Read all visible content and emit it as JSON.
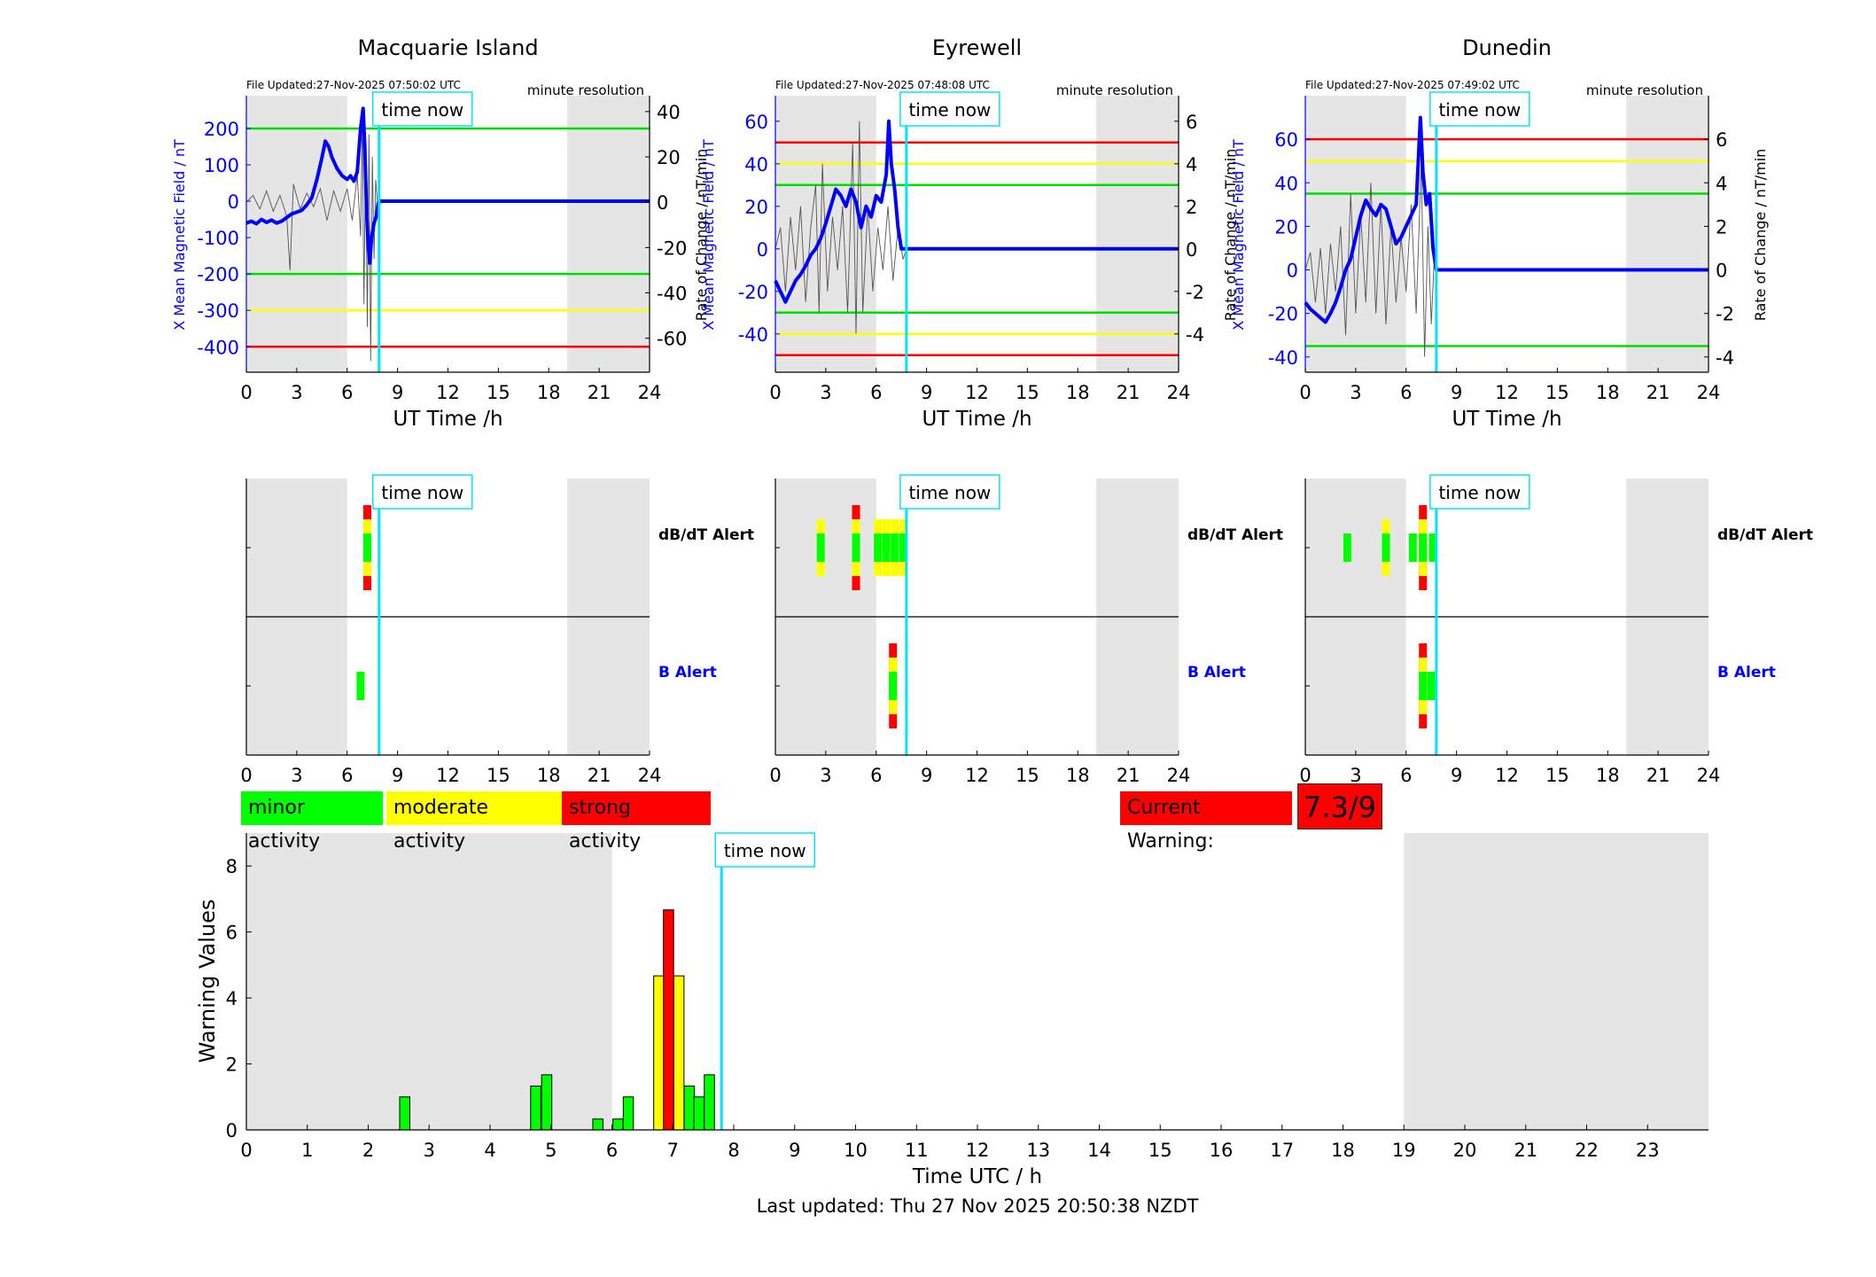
{
  "panels": [
    {
      "station": "Macquarie Island",
      "file_updated": "File Updated:27-Nov-2025 07:50:02 UTC",
      "resolution": "minute resolution",
      "left_axis_label": "X Mean Magnetic Field / nT",
      "right_axis_label": "Rate of Change / nT/min",
      "x_axis_label": "UT Time /h",
      "time_now_label": "time now",
      "time_now_h": 7.9,
      "night_shading": [
        [
          0,
          6.0
        ],
        [
          19.1,
          24
        ]
      ],
      "left_ticks": [
        200,
        100,
        0,
        -100,
        -200,
        -300,
        -400
      ],
      "left_ylim": [
        -470,
        290
      ],
      "right_ticks": [
        40,
        20,
        0,
        -20,
        -40,
        -60
      ],
      "right_ylim": [
        -75,
        47
      ],
      "x_ticks": [
        0,
        3,
        6,
        9,
        12,
        15,
        18,
        21,
        24
      ],
      "thresholds": [
        {
          "value": 200,
          "color": "#00dd00"
        },
        {
          "value": -200,
          "color": "#00dd00"
        },
        {
          "value": -300,
          "color": "#ffff00"
        },
        {
          "value": -400,
          "color": "#ff0000"
        }
      ],
      "x_mean_series": [
        [
          0,
          -60
        ],
        [
          0.3,
          -55
        ],
        [
          0.6,
          -62
        ],
        [
          0.9,
          -50
        ],
        [
          1.2,
          -58
        ],
        [
          1.5,
          -52
        ],
        [
          1.8,
          -60
        ],
        [
          2.1,
          -55
        ],
        [
          2.4,
          -45
        ],
        [
          2.7,
          -35
        ],
        [
          3.0,
          -30
        ],
        [
          3.3,
          -25
        ],
        [
          3.6,
          -10
        ],
        [
          3.9,
          10
        ],
        [
          4.2,
          60
        ],
        [
          4.5,
          120
        ],
        [
          4.7,
          165
        ],
        [
          4.9,
          150
        ],
        [
          5.1,
          120
        ],
        [
          5.4,
          90
        ],
        [
          5.7,
          70
        ],
        [
          6.0,
          60
        ],
        [
          6.2,
          70
        ],
        [
          6.4,
          55
        ],
        [
          6.6,
          80
        ],
        [
          6.8,
          200
        ],
        [
          6.95,
          255
        ],
        [
          7.05,
          150
        ],
        [
          7.15,
          -20
        ],
        [
          7.25,
          -120
        ],
        [
          7.35,
          -170
        ],
        [
          7.45,
          -100
        ],
        [
          7.6,
          -60
        ],
        [
          7.75,
          -40
        ],
        [
          7.85,
          -5
        ],
        [
          8.0,
          0
        ],
        [
          24,
          0
        ]
      ],
      "rate_series": [
        [
          0,
          0
        ],
        [
          0.4,
          3
        ],
        [
          0.8,
          -3
        ],
        [
          1.2,
          5
        ],
        [
          1.6,
          -4
        ],
        [
          2.0,
          3
        ],
        [
          2.4,
          -6
        ],
        [
          2.6,
          -30
        ],
        [
          2.8,
          8
        ],
        [
          3.2,
          -3
        ],
        [
          3.6,
          4
        ],
        [
          4.0,
          -2
        ],
        [
          4.4,
          6
        ],
        [
          4.8,
          -8
        ],
        [
          5.2,
          5
        ],
        [
          5.6,
          -4
        ],
        [
          6.0,
          6
        ],
        [
          6.3,
          -8
        ],
        [
          6.6,
          12
        ],
        [
          6.8,
          -15
        ],
        [
          6.9,
          35
        ],
        [
          7.0,
          -45
        ],
        [
          7.1,
          25
        ],
        [
          7.2,
          -55
        ],
        [
          7.3,
          30
        ],
        [
          7.4,
          -70
        ],
        [
          7.5,
          20
        ],
        [
          7.6,
          -25
        ],
        [
          7.7,
          10
        ],
        [
          7.8,
          0
        ]
      ],
      "alert_dbdt_label": "dB/dT Alert",
      "alert_b_label": "B Alert",
      "dbdt_alerts": [
        {
          "t": 7.2,
          "level": 3
        }
      ],
      "b_alerts": [
        {
          "t": 6.8,
          "level": 1
        }
      ]
    },
    {
      "station": "Eyrewell",
      "file_updated": "File Updated:27-Nov-2025 07:48:08 UTC",
      "resolution": "minute resolution",
      "left_axis_label": "X Mean Magnetic Field / nT",
      "right_axis_label": "Rate of Change / nT/min",
      "x_axis_label": "UT Time /h",
      "time_now_label": "time now",
      "time_now_h": 7.8,
      "night_shading": [
        [
          0,
          6.0
        ],
        [
          19.1,
          24
        ]
      ],
      "left_ticks": [
        60,
        40,
        20,
        0,
        -20,
        -40
      ],
      "left_ylim": [
        -58,
        72
      ],
      "right_ticks": [
        6,
        4,
        2,
        0,
        -2,
        -4
      ],
      "right_ylim": [
        -5.8,
        7.2
      ],
      "x_ticks": [
        0,
        3,
        6,
        9,
        12,
        15,
        18,
        21,
        24
      ],
      "thresholds": [
        {
          "value": 50,
          "color": "#ff0000"
        },
        {
          "value": 40,
          "color": "#ffff00"
        },
        {
          "value": 30,
          "color": "#00dd00"
        },
        {
          "value": -30,
          "color": "#00dd00"
        },
        {
          "value": -40,
          "color": "#ffff00"
        },
        {
          "value": -50,
          "color": "#ff0000"
        }
      ],
      "x_mean_series": [
        [
          0,
          -15
        ],
        [
          0.3,
          -20
        ],
        [
          0.6,
          -25
        ],
        [
          0.9,
          -20
        ],
        [
          1.2,
          -15
        ],
        [
          1.5,
          -12
        ],
        [
          1.8,
          -8
        ],
        [
          2.1,
          -3
        ],
        [
          2.4,
          0
        ],
        [
          2.7,
          5
        ],
        [
          3.0,
          12
        ],
        [
          3.3,
          20
        ],
        [
          3.6,
          28
        ],
        [
          3.9,
          25
        ],
        [
          4.2,
          20
        ],
        [
          4.5,
          28
        ],
        [
          4.8,
          22
        ],
        [
          5.1,
          10
        ],
        [
          5.4,
          20
        ],
        [
          5.7,
          15
        ],
        [
          6.0,
          25
        ],
        [
          6.3,
          22
        ],
        [
          6.6,
          35
        ],
        [
          6.75,
          60
        ],
        [
          6.9,
          40
        ],
        [
          7.1,
          28
        ],
        [
          7.3,
          10
        ],
        [
          7.5,
          0
        ],
        [
          7.8,
          0
        ],
        [
          24,
          0
        ]
      ],
      "rate_series": [
        [
          0,
          0
        ],
        [
          0.3,
          1
        ],
        [
          0.6,
          -2
        ],
        [
          0.9,
          1.5
        ],
        [
          1.2,
          -1
        ],
        [
          1.5,
          2
        ],
        [
          1.8,
          -2.5
        ],
        [
          2.1,
          1
        ],
        [
          2.4,
          3
        ],
        [
          2.6,
          -3
        ],
        [
          2.8,
          4
        ],
        [
          3.1,
          -2
        ],
        [
          3.4,
          1.5
        ],
        [
          3.7,
          -1
        ],
        [
          4.0,
          2
        ],
        [
          4.3,
          -3
        ],
        [
          4.6,
          5
        ],
        [
          4.8,
          -4
        ],
        [
          5.0,
          6
        ],
        [
          5.2,
          -3
        ],
        [
          5.5,
          2
        ],
        [
          5.8,
          -2
        ],
        [
          6.1,
          1
        ],
        [
          6.4,
          -1
        ],
        [
          6.7,
          2
        ],
        [
          7.0,
          -1.5
        ],
        [
          7.3,
          1
        ],
        [
          7.6,
          -0.5
        ],
        [
          7.8,
          0
        ]
      ],
      "alert_dbdt_label": "dB/dT Alert",
      "alert_b_label": "B Alert",
      "dbdt_alerts": [
        {
          "t": 2.7,
          "level": 2
        },
        {
          "t": 4.8,
          "level": 3
        },
        {
          "t": 6.1,
          "level": 2
        },
        {
          "t": 6.6,
          "level": 2
        },
        {
          "t": 7.1,
          "level": 2
        },
        {
          "t": 7.6,
          "level": 2
        }
      ],
      "b_alerts": [
        {
          "t": 7.0,
          "level": 3
        }
      ]
    },
    {
      "station": "Dunedin",
      "file_updated": "File Updated:27-Nov-2025 07:49:02 UTC",
      "resolution": "minute resolution",
      "left_axis_label": "X Mean Magnetic Field / nT",
      "right_axis_label": "Rate of Change / nT/min",
      "x_axis_label": "UT Time /h",
      "time_now_label": "time now",
      "time_now_h": 7.8,
      "night_shading": [
        [
          0,
          6.0
        ],
        [
          19.1,
          24
        ]
      ],
      "left_ticks": [
        60,
        40,
        20,
        0,
        -20,
        -40
      ],
      "left_ylim": [
        -47,
        80
      ],
      "right_ticks": [
        6,
        4,
        2,
        0,
        -2,
        -4
      ],
      "right_ylim": [
        -4.7,
        8.0
      ],
      "x_ticks": [
        0,
        3,
        6,
        9,
        12,
        15,
        18,
        21,
        24
      ],
      "thresholds": [
        {
          "value": 60,
          "color": "#ff0000"
        },
        {
          "value": 50,
          "color": "#ffff00"
        },
        {
          "value": 35,
          "color": "#00dd00"
        },
        {
          "value": -35,
          "color": "#00dd00"
        }
      ],
      "x_mean_series": [
        [
          0,
          -15
        ],
        [
          0.3,
          -18
        ],
        [
          0.6,
          -20
        ],
        [
          0.9,
          -22
        ],
        [
          1.2,
          -24
        ],
        [
          1.5,
          -20
        ],
        [
          1.8,
          -15
        ],
        [
          2.1,
          -8
        ],
        [
          2.4,
          0
        ],
        [
          2.7,
          5
        ],
        [
          3.0,
          15
        ],
        [
          3.3,
          25
        ],
        [
          3.6,
          32
        ],
        [
          3.9,
          28
        ],
        [
          4.2,
          25
        ],
        [
          4.5,
          30
        ],
        [
          4.8,
          28
        ],
        [
          5.1,
          20
        ],
        [
          5.4,
          12
        ],
        [
          5.7,
          15
        ],
        [
          6.0,
          20
        ],
        [
          6.3,
          25
        ],
        [
          6.6,
          30
        ],
        [
          6.85,
          70
        ],
        [
          7.0,
          45
        ],
        [
          7.2,
          30
        ],
        [
          7.4,
          35
        ],
        [
          7.6,
          10
        ],
        [
          7.8,
          0
        ],
        [
          24,
          0
        ]
      ],
      "rate_series": [
        [
          0,
          0
        ],
        [
          0.3,
          0.8
        ],
        [
          0.6,
          -1.5
        ],
        [
          0.9,
          1
        ],
        [
          1.2,
          -2
        ],
        [
          1.5,
          1.2
        ],
        [
          1.8,
          -1
        ],
        [
          2.1,
          2
        ],
        [
          2.4,
          -3
        ],
        [
          2.7,
          3.5
        ],
        [
          3.0,
          -2
        ],
        [
          3.3,
          2.5
        ],
        [
          3.6,
          -1.5
        ],
        [
          3.9,
          4
        ],
        [
          4.2,
          -2
        ],
        [
          4.5,
          3
        ],
        [
          4.8,
          -2.5
        ],
        [
          5.1,
          2
        ],
        [
          5.4,
          -1.5
        ],
        [
          5.7,
          1.5
        ],
        [
          6.0,
          -1
        ],
        [
          6.3,
          3
        ],
        [
          6.6,
          -2
        ],
        [
          6.9,
          5
        ],
        [
          7.1,
          -4
        ],
        [
          7.3,
          2
        ],
        [
          7.5,
          -2.5
        ],
        [
          7.7,
          1
        ],
        [
          7.8,
          0
        ]
      ],
      "alert_dbdt_label": "dB/dT Alert",
      "alert_b_label": "B Alert",
      "dbdt_alerts": [
        {
          "t": 2.5,
          "level": 1
        },
        {
          "t": 4.8,
          "level": 2
        },
        {
          "t": 6.4,
          "level": 1
        },
        {
          "t": 7.0,
          "level": 3
        },
        {
          "t": 7.6,
          "level": 1
        }
      ],
      "b_alerts": [
        {
          "t": 7.0,
          "level": 3
        },
        {
          "t": 7.5,
          "level": 1
        }
      ]
    }
  ],
  "legend": {
    "minor": "minor activity",
    "moderate": "moderate activity",
    "strong": "strong activity"
  },
  "current_warning": {
    "label": "Current Warning:",
    "value": "7.3/9"
  },
  "colors": {
    "minor": "#00ff00",
    "moderate": "#ffff00",
    "strong": "#ff0000",
    "night": "#e5e5e5",
    "time_now": "#00e5ff",
    "x_mean": "#0000ff",
    "threshold_green": "#00dd00"
  },
  "chart_data": {
    "type": "bar",
    "ylabel": "Warning Values",
    "xlabel": "Time UTC / h",
    "xlim": [
      0,
      24
    ],
    "ylim": [
      0,
      9
    ],
    "y_ticks": [
      0,
      2,
      4,
      6,
      8
    ],
    "x_ticks": [
      0,
      1,
      2,
      3,
      4,
      5,
      6,
      7,
      8,
      9,
      10,
      11,
      12,
      13,
      14,
      15,
      16,
      17,
      18,
      19,
      20,
      21,
      22,
      23
    ],
    "time_now_label": "time now",
    "time_now_h": 7.8,
    "night_shading": [
      [
        0,
        6.0
      ],
      [
        19.0,
        24
      ]
    ],
    "bars": [
      {
        "t": 2.6,
        "value": 1.0,
        "level": "minor"
      },
      {
        "t": 4.75,
        "value": 1.33,
        "level": "minor"
      },
      {
        "t": 4.93,
        "value": 1.67,
        "level": "minor"
      },
      {
        "t": 5.77,
        "value": 0.33,
        "level": "minor"
      },
      {
        "t": 6.1,
        "value": 0.33,
        "level": "minor"
      },
      {
        "t": 6.27,
        "value": 1.0,
        "level": "minor"
      },
      {
        "t": 6.77,
        "value": 4.67,
        "level": "moderate"
      },
      {
        "t": 6.93,
        "value": 6.67,
        "level": "strong"
      },
      {
        "t": 7.1,
        "value": 4.67,
        "level": "moderate"
      },
      {
        "t": 7.27,
        "value": 1.33,
        "level": "minor"
      },
      {
        "t": 7.43,
        "value": 1.0,
        "level": "minor"
      },
      {
        "t": 7.6,
        "value": 1.67,
        "level": "minor"
      }
    ]
  },
  "footer": {
    "last_updated": "Last updated: Thu 27 Nov 2025 20:50:38 NZDT"
  }
}
